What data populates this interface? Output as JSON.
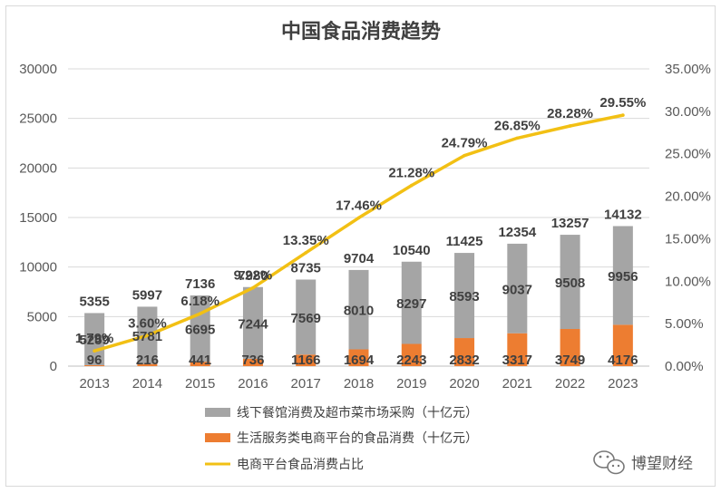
{
  "colors": {
    "offline": "#a5a5a5",
    "online": "#ed7d31",
    "share": "#f2c014",
    "grid": "#d9d9d9"
  },
  "watermark": {
    "icon": "wechat-icon",
    "text": "博望财经"
  },
  "chart_data": {
    "type": "bar",
    "stacked": true,
    "title": "中国食品消费趋势",
    "categories": [
      "2013",
      "2014",
      "2015",
      "2016",
      "2017",
      "2018",
      "2019",
      "2020",
      "2021",
      "2022",
      "2023"
    ],
    "series": [
      {
        "name": "线下餐馆消费及超市菜市场采购（十亿元）",
        "kind": "bar",
        "axis": "left",
        "values": [
          5259,
          5781,
          6695,
          7244,
          7569,
          8010,
          8297,
          8593,
          9037,
          9508,
          9956
        ]
      },
      {
        "name": "生活服务类电商平台的食品消费（十亿元）",
        "kind": "bar",
        "axis": "left",
        "values": [
          96,
          216,
          441,
          736,
          1166,
          1694,
          2243,
          2832,
          3317,
          3749,
          4176
        ]
      },
      {
        "name": "电商平台食品消费占比",
        "kind": "line",
        "axis": "right",
        "values": [
          1.79,
          3.6,
          6.18,
          9.22,
          13.35,
          17.46,
          21.28,
          24.79,
          26.85,
          28.28,
          29.55
        ],
        "labels": [
          "1.79%",
          "3.60%",
          "6.18%",
          "9.22%",
          "13.35%",
          "17.46%",
          "21.28%",
          "24.79%",
          "26.85%",
          "28.28%",
          "29.55%"
        ]
      }
    ],
    "totals": [
      5355,
      5997,
      7136,
      7980,
      8735,
      9704,
      10540,
      11425,
      12354,
      13257,
      14132
    ],
    "y_left": {
      "min": 0,
      "max": 30000,
      "ticks": [
        "0",
        "5000",
        "10000",
        "15000",
        "20000",
        "25000",
        "30000"
      ]
    },
    "y_right": {
      "min": 0,
      "max": 35,
      "ticks": [
        "0.00%",
        "5.00%",
        "10.00%",
        "15.00%",
        "20.00%",
        "25.00%",
        "30.00%",
        "35.00%"
      ]
    },
    "legend_position": "bottom",
    "grid": true
  }
}
